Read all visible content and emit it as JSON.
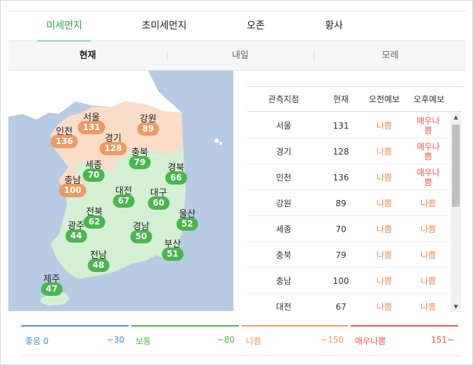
{
  "tabs": [
    "미세먼지",
    "초미세먼지",
    "오존",
    "황사"
  ],
  "subtabs": [
    "현재",
    "내일",
    "모레"
  ],
  "colors": {
    "good": "#4a90e2",
    "normal": "#4bb64e",
    "bad": "#ee9a62",
    "very_bad": "#e8574e",
    "sea": "#b7cbe3",
    "land_bad": "#fbdcc8",
    "land_normal": "#d4efd3"
  },
  "regions": [
    {
      "name": "서울",
      "value": "131",
      "level": "bad"
    },
    {
      "name": "강원",
      "value": "89",
      "level": "bad"
    },
    {
      "name": "인천",
      "value": "136",
      "level": "bad"
    },
    {
      "name": "경기",
      "value": "128",
      "level": "bad"
    },
    {
      "name": "세종",
      "value": "70",
      "level": "normal"
    },
    {
      "name": "충북",
      "value": "79",
      "level": "normal"
    },
    {
      "name": "경북",
      "value": "66",
      "level": "normal"
    },
    {
      "name": "충남",
      "value": "100",
      "level": "bad"
    },
    {
      "name": "대전",
      "value": "67",
      "level": "normal"
    },
    {
      "name": "대구",
      "value": "60",
      "level": "normal"
    },
    {
      "name": "전북",
      "value": "62",
      "level": "normal"
    },
    {
      "name": "울산",
      "value": "52",
      "level": "normal"
    },
    {
      "name": "광주",
      "value": "44",
      "level": "normal"
    },
    {
      "name": "경남",
      "value": "50",
      "level": "normal"
    },
    {
      "name": "부산",
      "value": "51",
      "level": "normal"
    },
    {
      "name": "전남",
      "value": "48",
      "level": "normal"
    },
    {
      "name": "제주",
      "value": "47",
      "level": "normal"
    }
  ],
  "table": {
    "headers": [
      "관측지점",
      "현재",
      "오전예보",
      "오후예보"
    ],
    "rows": [
      {
        "name": "서울",
        "now": "131",
        "am": "나쁨",
        "pm": "매우나쁨"
      },
      {
        "name": "경기",
        "now": "128",
        "am": "나쁨",
        "pm": "매우나쁨"
      },
      {
        "name": "인천",
        "now": "136",
        "am": "나쁨",
        "pm": "매우나쁨"
      },
      {
        "name": "강원",
        "now": "89",
        "am": "나쁨",
        "pm": "나쁨"
      },
      {
        "name": "세종",
        "now": "70",
        "am": "나쁨",
        "pm": "나쁨"
      },
      {
        "name": "충북",
        "now": "79",
        "am": "나쁨",
        "pm": "나쁨"
      },
      {
        "name": "충남",
        "now": "100",
        "am": "나쁨",
        "pm": "나쁨"
      },
      {
        "name": "대전",
        "now": "67",
        "am": "나쁨",
        "pm": "나쁨"
      }
    ]
  },
  "legend": [
    {
      "name": "좋음",
      "value": "0",
      "range": "~30",
      "color": "#4a90e2"
    },
    {
      "name": "보통",
      "value": "",
      "range": "~80",
      "color": "#4bb64e"
    },
    {
      "name": "나쁨",
      "value": "",
      "range": "~150",
      "color": "#ee9a62"
    },
    {
      "name": "매우나쁨",
      "value": "",
      "range": "151~",
      "color": "#e8574e"
    }
  ]
}
